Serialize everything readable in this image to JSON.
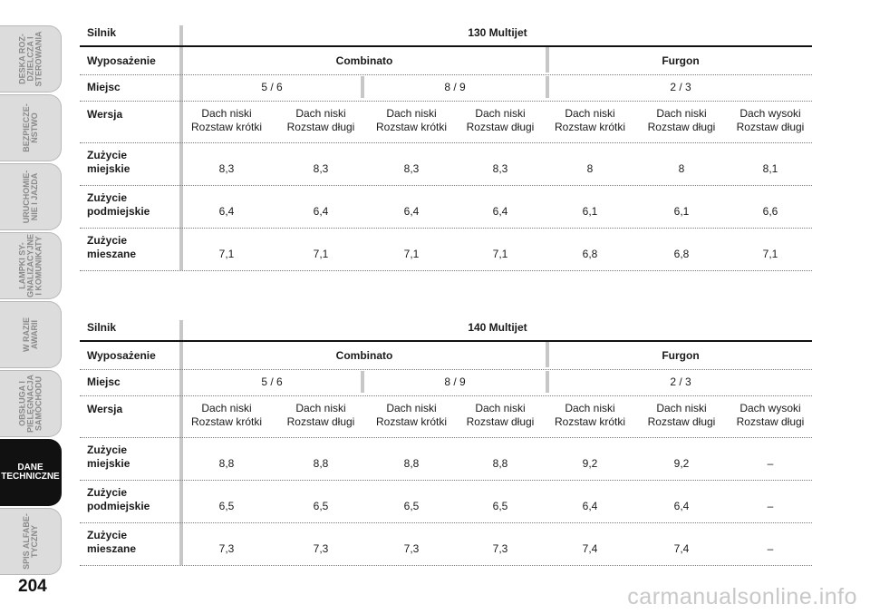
{
  "sidebar": {
    "tabs": [
      {
        "label": "DESKA ROZ-\nDZIELCZA I\nSTEROWANIA",
        "active": false
      },
      {
        "label": "BEZPIECZE-\nŃSTWO",
        "active": false
      },
      {
        "label": "URUCHOMIE-\nNIE I JAZDA",
        "active": false
      },
      {
        "label": "LAMPKI SY-\nGNALIZACYJNE\nI KOMUNIKATY",
        "active": false
      },
      {
        "label": "W RAZIE\nAWARII",
        "active": false
      },
      {
        "label": "OBSŁUGA I\nPIELĘGNACJA\nSAMOCHODU",
        "active": false
      },
      {
        "label": "DANE\nTECHNICZNE",
        "active": true
      },
      {
        "label": "SPIS ALFABE-\nTYCZNY",
        "active": false
      }
    ]
  },
  "page_number": "204",
  "watermark": "carmanualsonline.info",
  "tables": [
    {
      "engine_label": "Silnik",
      "engine": "130 Multijet",
      "equipment_label": "Wyposażenie",
      "equipment": [
        "Combinato",
        "Furgon"
      ],
      "seats_label": "Miejsc",
      "seats": [
        "5 / 6",
        "8 / 9",
        "2 / 3"
      ],
      "version_label": "Wersja",
      "versions": [
        {
          "line1": "Dach niski",
          "line2": "Rozstaw krótki"
        },
        {
          "line1": "Dach niski",
          "line2": "Rozstaw długi"
        },
        {
          "line1": "Dach niski",
          "line2": "Rozstaw krótki"
        },
        {
          "line1": "Dach niski",
          "line2": "Rozstaw długi"
        },
        {
          "line1": "Dach niski",
          "line2": "Rozstaw krótki"
        },
        {
          "line1": "Dach niski",
          "line2": "Rozstaw długi"
        },
        {
          "line1": "Dach wysoki",
          "line2": "Rozstaw długi"
        }
      ],
      "consumption": [
        {
          "label1": "Zużycie",
          "label2": "miejskie",
          "values": [
            "8,3",
            "8,3",
            "8,3",
            "8,3",
            "8",
            "8",
            "8,1"
          ]
        },
        {
          "label1": "Zużycie",
          "label2": "podmiejskie",
          "values": [
            "6,4",
            "6,4",
            "6,4",
            "6,4",
            "6,1",
            "6,1",
            "6,6"
          ]
        },
        {
          "label1": "Zużycie",
          "label2": "mieszane",
          "values": [
            "7,1",
            "7,1",
            "7,1",
            "7,1",
            "6,8",
            "6,8",
            "7,1"
          ]
        }
      ]
    },
    {
      "engine_label": "Silnik",
      "engine": "140 Multijet",
      "equipment_label": "Wyposażenie",
      "equipment": [
        "Combinato",
        "Furgon"
      ],
      "seats_label": "Miejsc",
      "seats": [
        "5 / 6",
        "8 / 9",
        "2 / 3"
      ],
      "version_label": "Wersja",
      "versions": [
        {
          "line1": "Dach niski",
          "line2": "Rozstaw krótki"
        },
        {
          "line1": "Dach niski",
          "line2": "Rozstaw długi"
        },
        {
          "line1": "Dach niski",
          "line2": "Rozstaw krótki"
        },
        {
          "line1": "Dach niski",
          "line2": "Rozstaw długi"
        },
        {
          "line1": "Dach niski",
          "line2": "Rozstaw krótki"
        },
        {
          "line1": "Dach niski",
          "line2": "Rozstaw długi"
        },
        {
          "line1": "Dach wysoki",
          "line2": "Rozstaw długi"
        }
      ],
      "consumption": [
        {
          "label1": "Zużycie",
          "label2": "miejskie",
          "values": [
            "8,8",
            "8,8",
            "8,8",
            "8,8",
            "9,2",
            "9,2",
            "–"
          ]
        },
        {
          "label1": "Zużycie",
          "label2": "podmiejskie",
          "values": [
            "6,5",
            "6,5",
            "6,5",
            "6,5",
            "6,4",
            "6,4",
            "–"
          ]
        },
        {
          "label1": "Zużycie",
          "label2": "mieszane",
          "values": [
            "7,3",
            "7,3",
            "7,3",
            "7,3",
            "7,4",
            "7,4",
            "–"
          ]
        }
      ]
    }
  ]
}
